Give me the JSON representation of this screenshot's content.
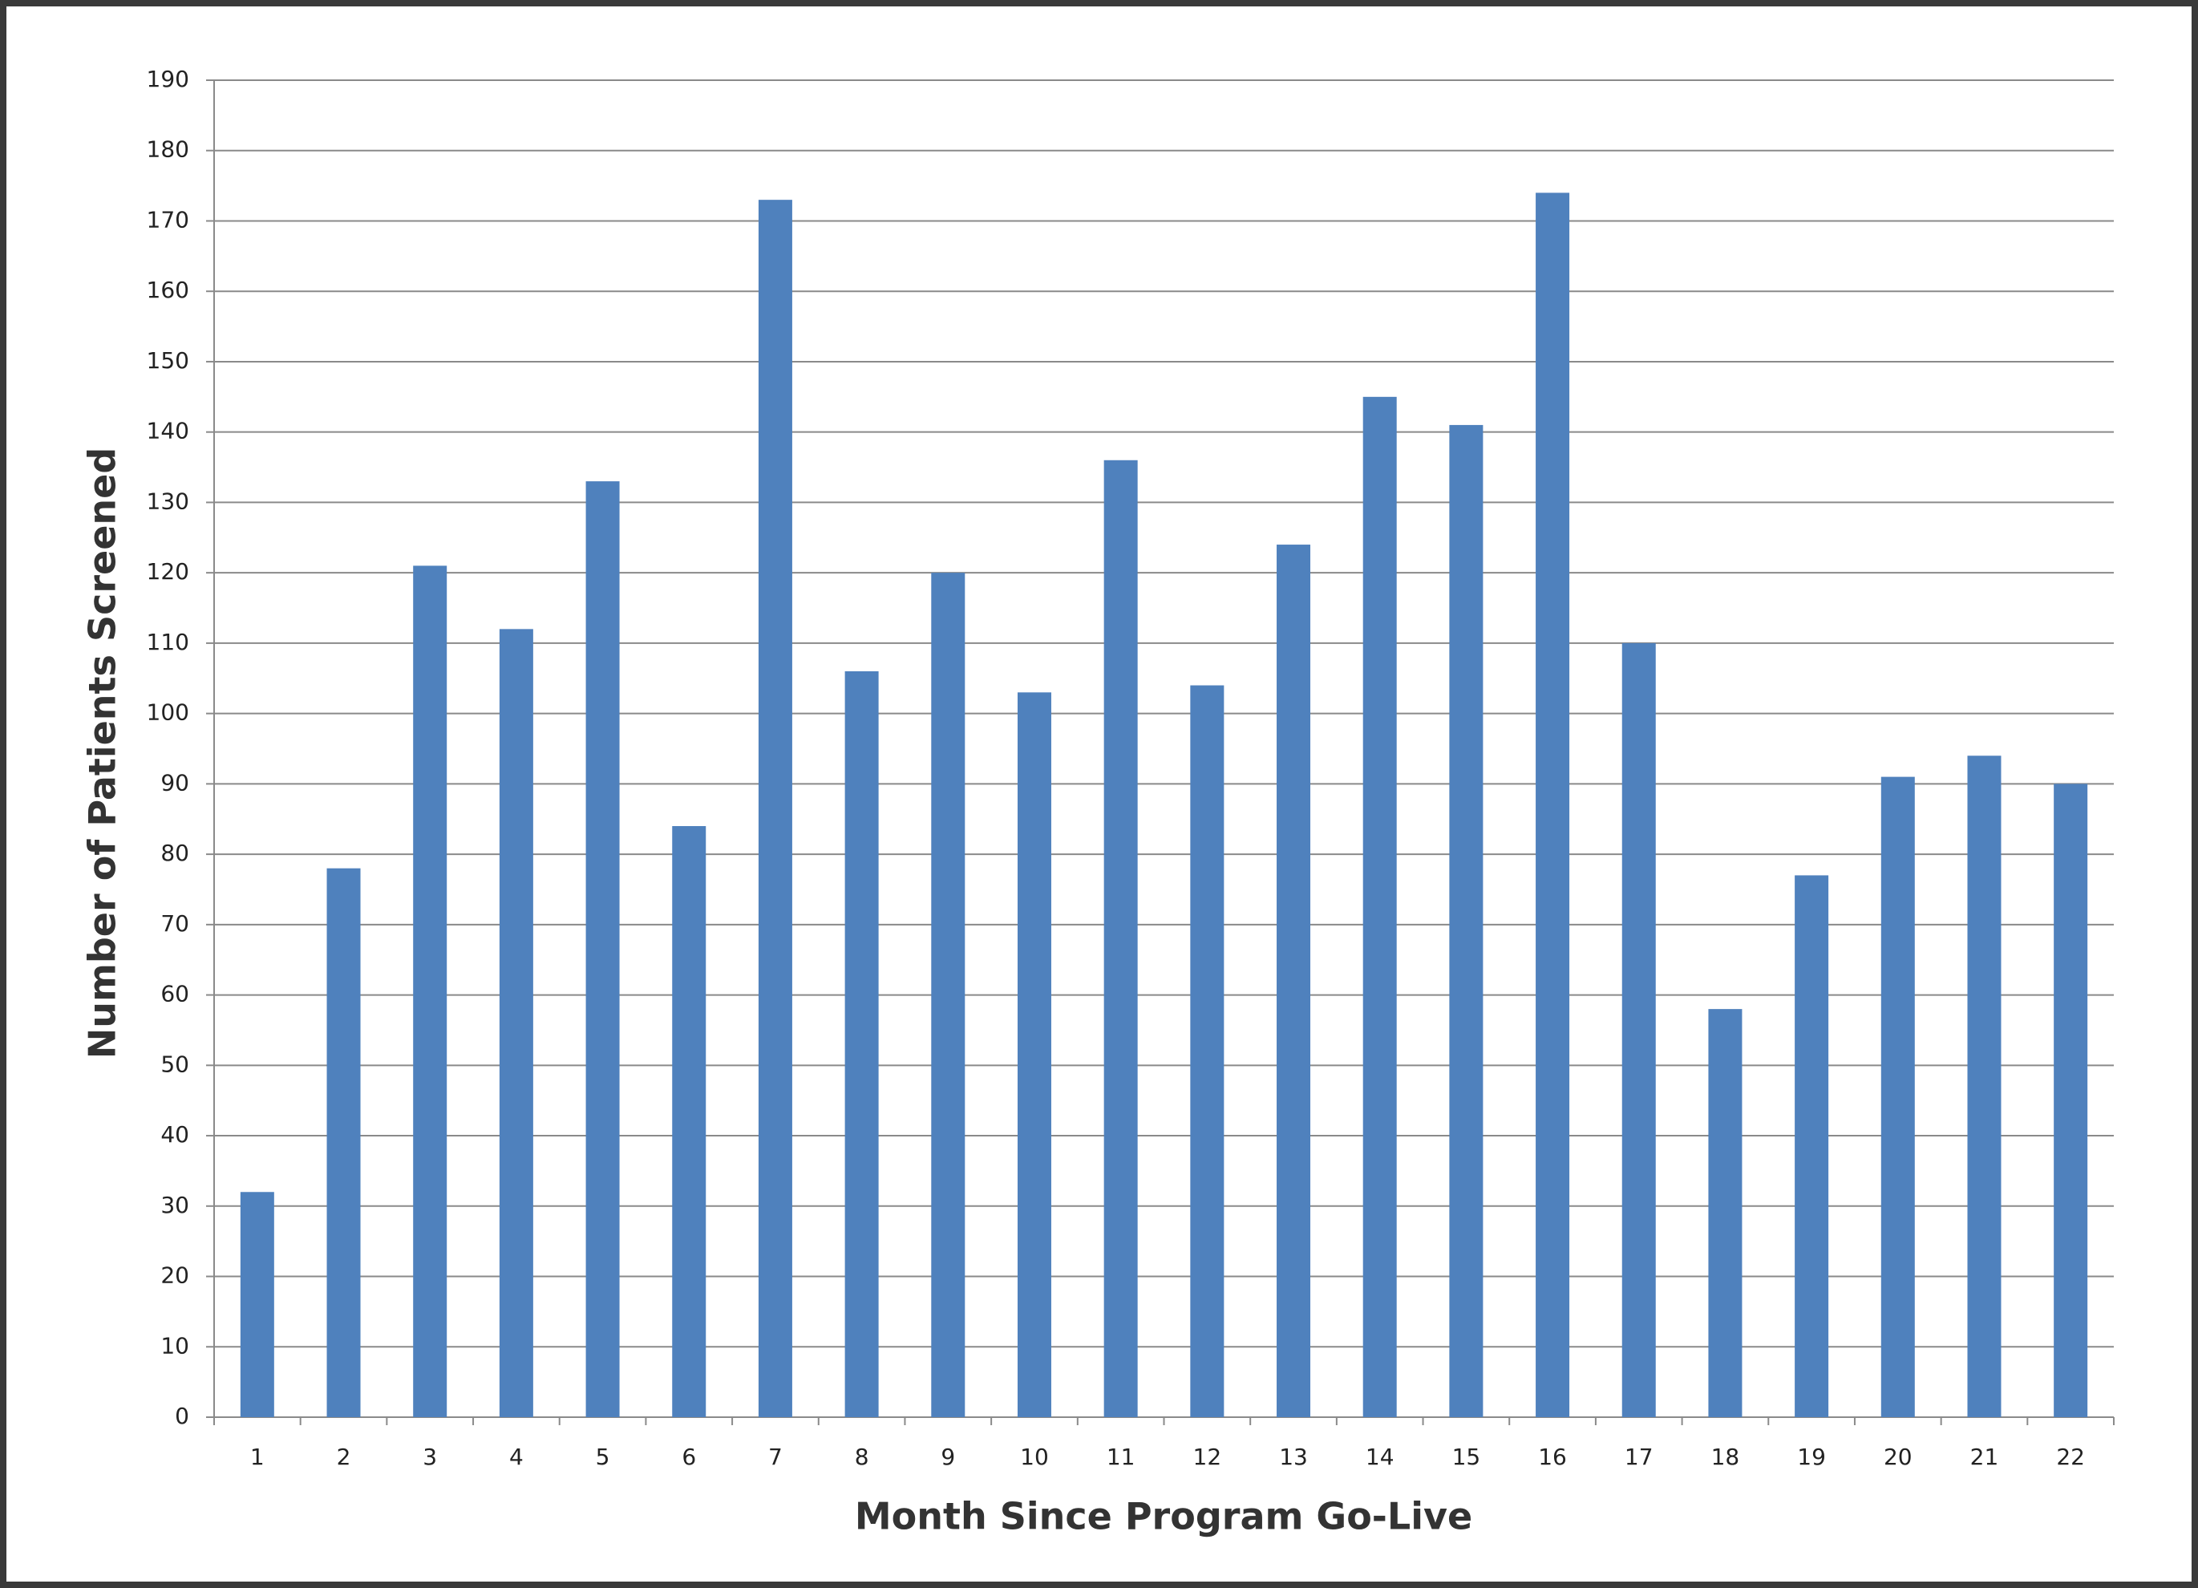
{
  "chart_data": {
    "type": "bar",
    "x_label": "Month Since Program Go-Live",
    "y_label": "Number of Patients Screened",
    "categories": [
      "1",
      "2",
      "3",
      "4",
      "5",
      "6",
      "7",
      "8",
      "9",
      "10",
      "11",
      "12",
      "13",
      "14",
      "15",
      "16",
      "17",
      "18",
      "19",
      "20",
      "21",
      "22"
    ],
    "values": [
      32,
      78,
      121,
      112,
      133,
      84,
      173,
      106,
      120,
      103,
      136,
      104,
      124,
      145,
      141,
      174,
      110,
      58,
      77,
      91,
      94,
      90
    ],
    "color": "#4f81bd",
    "ylim": [
      0,
      190
    ],
    "yticks": [
      0,
      10,
      20,
      30,
      40,
      50,
      60,
      70,
      80,
      90,
      100,
      110,
      120,
      130,
      140,
      150,
      160,
      170,
      180,
      190
    ],
    "grid": true
  }
}
